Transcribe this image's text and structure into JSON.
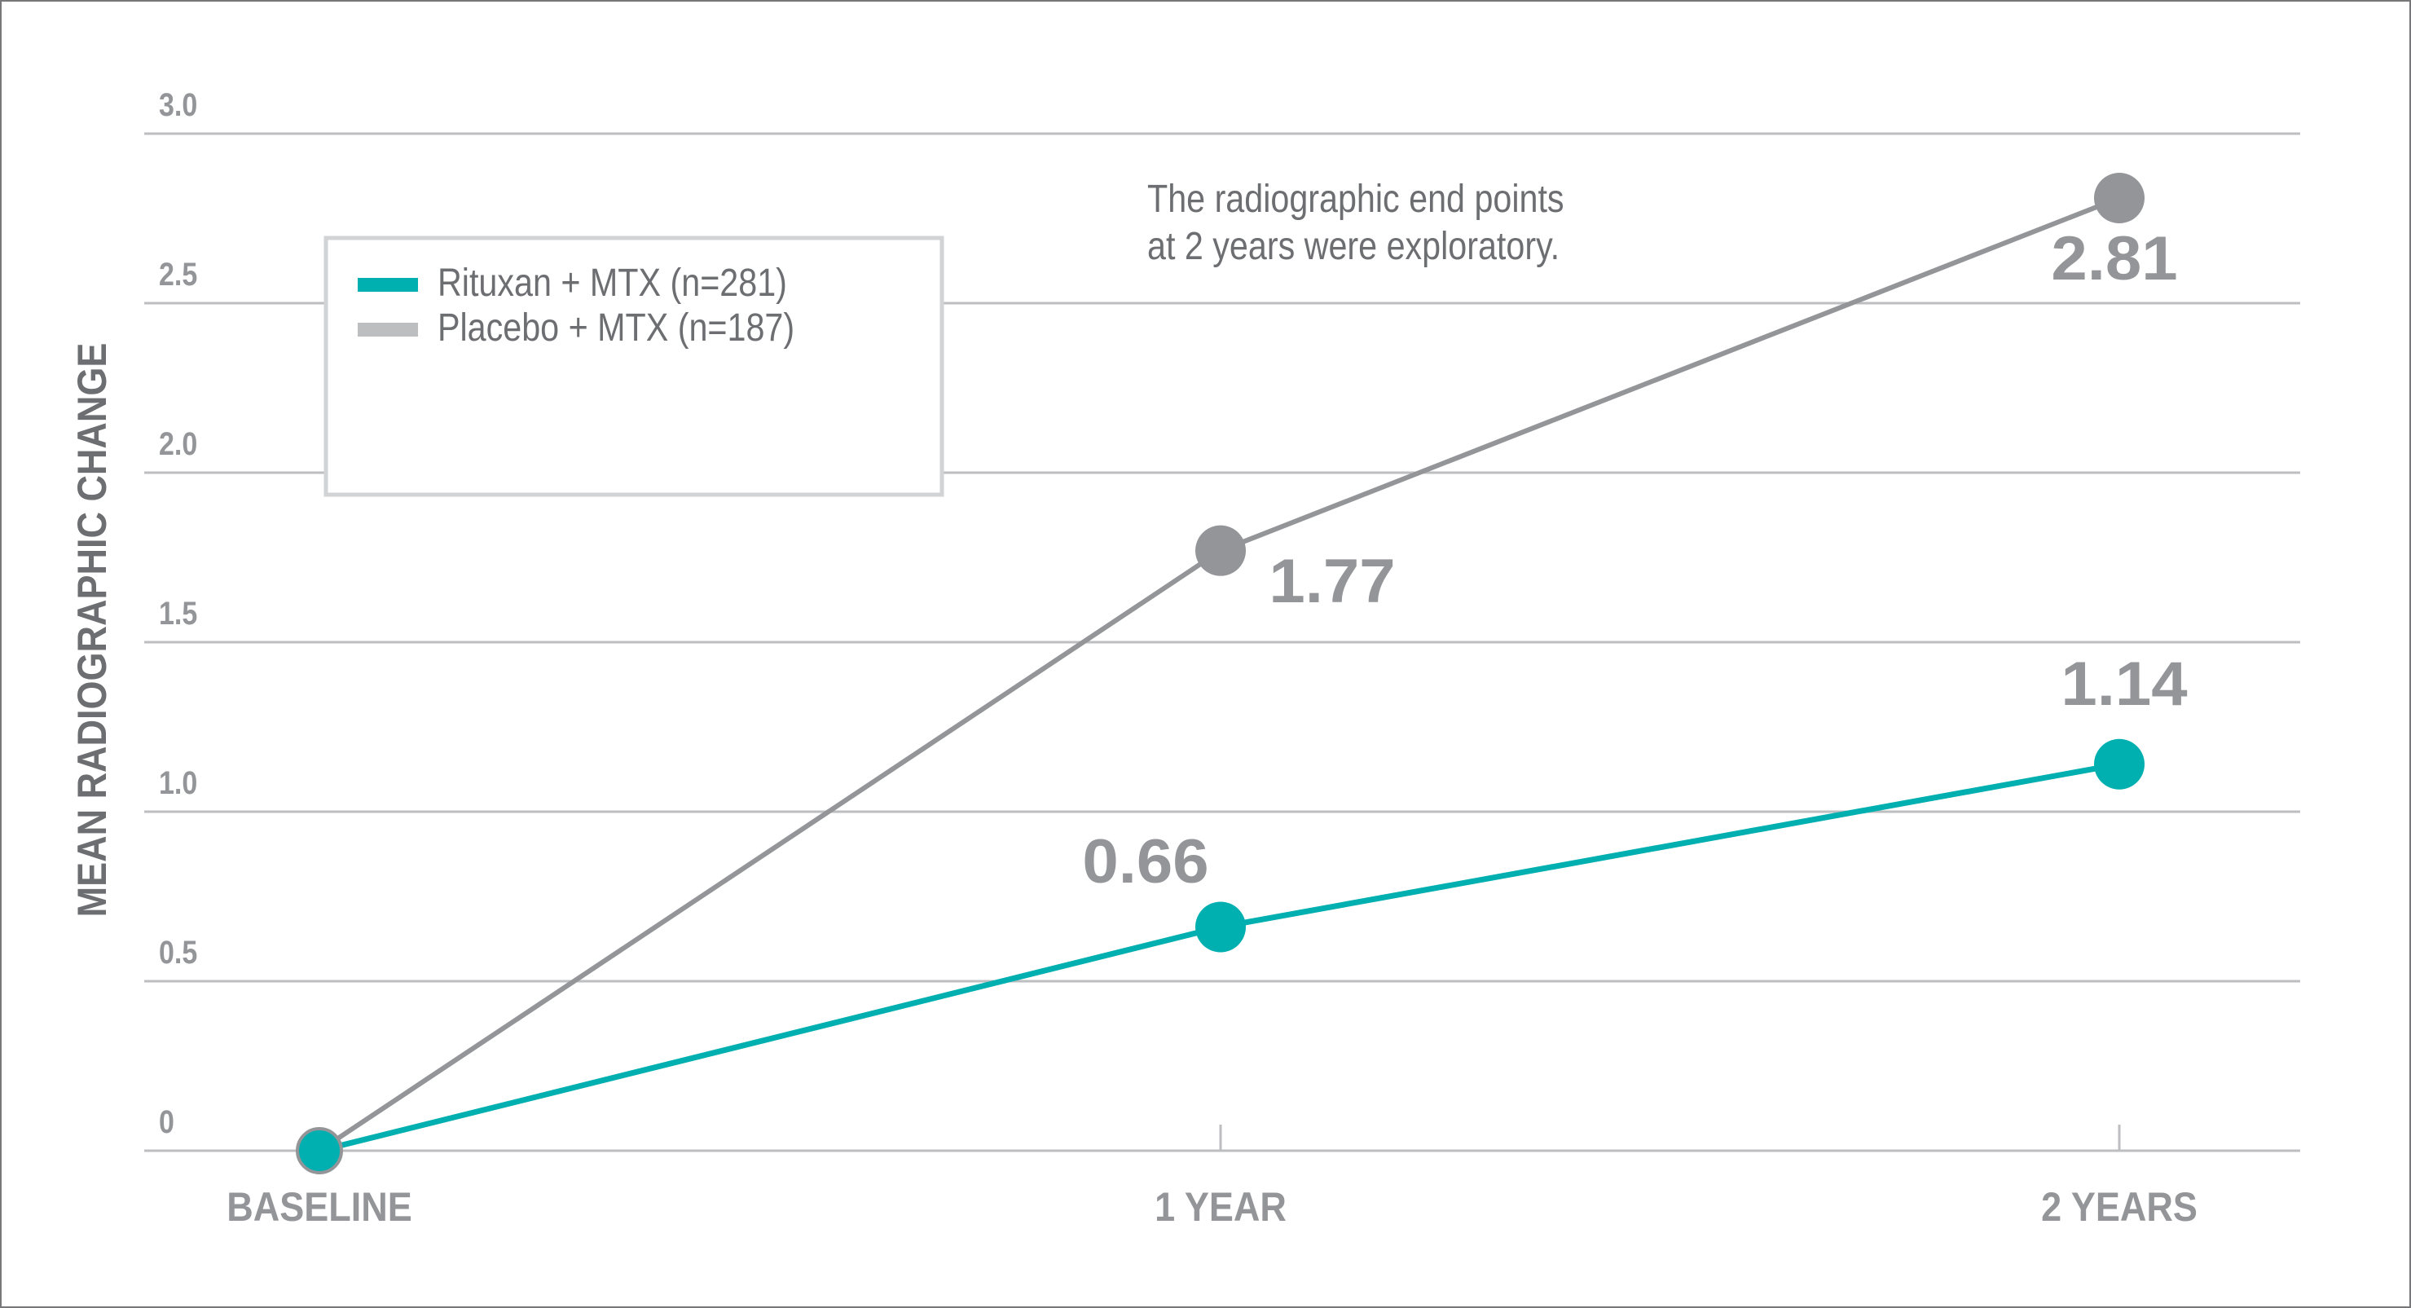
{
  "chart_data": {
    "type": "line",
    "title": "",
    "xlabel": "",
    "ylabel": "MEAN RADIOGRAPHIC CHANGE",
    "categories": [
      "BASELINE",
      "1 YEAR",
      "2 YEARS"
    ],
    "ylim": [
      0,
      3.0
    ],
    "yticks": [
      {
        "value": 0,
        "label": "0"
      },
      {
        "value": 0.5,
        "label": "0.5"
      },
      {
        "value": 1.0,
        "label": "1.0"
      },
      {
        "value": 1.5,
        "label": "1.5"
      },
      {
        "value": 2.0,
        "label": "2.0"
      },
      {
        "value": 2.5,
        "label": "2.5"
      },
      {
        "value": 3.0,
        "label": "3.0"
      }
    ],
    "grid": true,
    "legend_position": "upper-left",
    "series": [
      {
        "name": "Rituxan + MTX (n=281)",
        "color": "#00afaf",
        "values": [
          0,
          0.66,
          1.14
        ],
        "labels": [
          "",
          "0.66",
          "1.14"
        ]
      },
      {
        "name": "Placebo + MTX (n=187)",
        "color": "#939598",
        "legend_color": "#bcbec0",
        "values": [
          0,
          1.77,
          2.81
        ],
        "labels": [
          "",
          "1.77",
          "2.81"
        ]
      }
    ],
    "annotations": [
      {
        "text_lines": [
          "The radiographic end points",
          "at 2 years were exploratory."
        ]
      }
    ]
  },
  "colors": {
    "grid": "#bcbec0",
    "tick_text": "#939598",
    "body_text": "#6d6e71",
    "frame": "#77777a",
    "rituxan": "#00afaf",
    "placebo": "#939598",
    "placebo_legend": "#bcbec0"
  }
}
